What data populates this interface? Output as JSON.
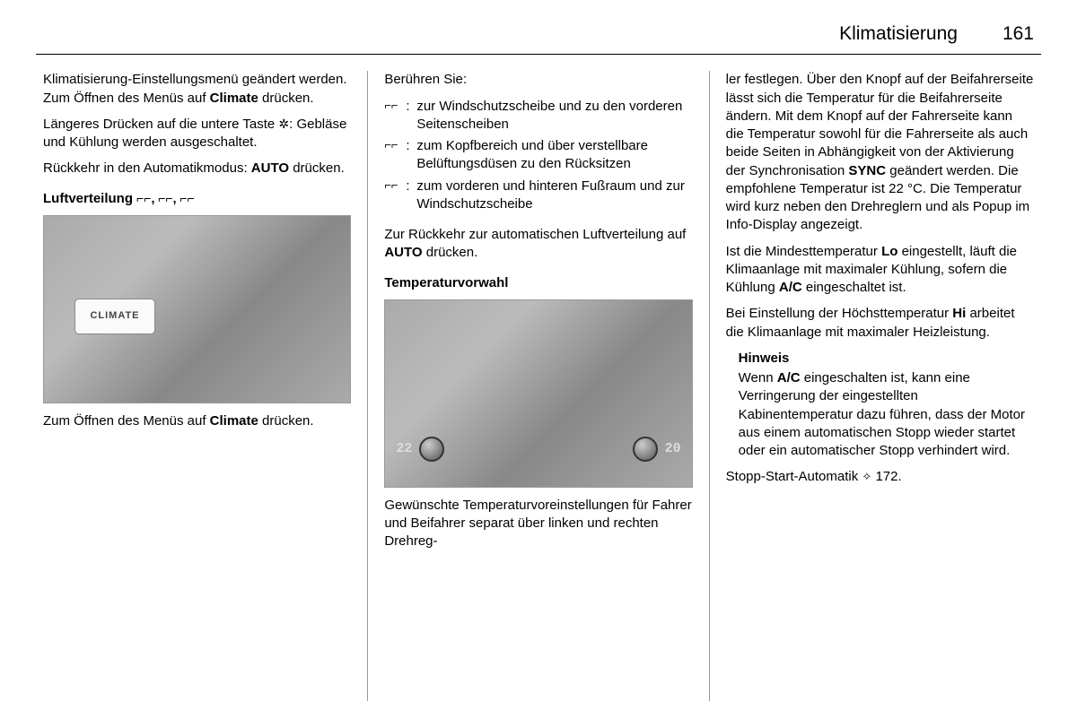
{
  "header": {
    "title": "Klimatisierung",
    "page": "161"
  },
  "col1": {
    "p1_a": "Klimatisierung-Einstellungsmenü geändert werden. Zum Öffnen des Menüs auf ",
    "p1_bold": "Climate",
    "p1_b": " drücken.",
    "p2_a": "Längeres Drücken auf die untere Taste ",
    "p2_icon": "✲",
    "p2_b": ": Gebläse und Kühlung werden ausgeschaltet.",
    "p3_a": "Rückkehr in den Automatikmodus: ",
    "p3_bold": "AUTO",
    "p3_b": " drücken.",
    "subhead_a": "Luftverteilung ",
    "subhead_icons": "⌐⌐, ⌐⌐, ⌐⌐",
    "climate_label": "CLIMATE",
    "p4_a": "Zum Öffnen des Menüs auf ",
    "p4_bold": "Climate",
    "p4_b": " drücken."
  },
  "col2": {
    "p1": "Berühren Sie:",
    "items": [
      {
        "icon": "⌐⌐",
        "text": "zur Windschutzscheibe und zu den vorderen Seitenscheiben"
      },
      {
        "icon": "⌐⌐",
        "text": "zum Kopfbereich und über verstellbare Belüftungsdüsen zu den Rücksitzen"
      },
      {
        "icon": "⌐⌐",
        "text": "zum vorderen und hinteren Fußraum und zur Windschutz­scheibe"
      }
    ],
    "p2_a": "Zur Rückkehr zur automatischen Luft­verteilung auf ",
    "p2_bold": "AUTO",
    "p2_b": " drücken.",
    "subhead": "Temperaturvorwahl",
    "temp_left": "22",
    "temp_right": "20",
    "p3": "Gewünschte Temperaturvoreinstel­lungen für Fahrer und Beifahrer sepa­rat über linken und rechten Drehreg-"
  },
  "col3": {
    "p1_a": "ler festlegen. Über den Knopf auf der Beifahrerseite lässt sich die Tempe­ratur für die Beifahrerseite ändern. Mit dem Knopf auf der Fahrerseite kann die Temperatur sowohl für die Fahrerseite als auch beide Seiten in Abhängigkeit von der Aktivierung der Synchronisation ",
    "p1_bold": "SYNC",
    "p1_b": " geändert werden. Die empfohlene Temperatur ist 22 °C. Die Temperatur wird kurz neben den Drehreglern und als Popup im Info-Display angezeigt.",
    "p2_a": "Ist die Mindesttemperatur ",
    "p2_bold1": "Lo",
    "p2_b": " einge­stellt, läuft die Klimaanlage mit maxi­maler Kühlung, sofern die Kühlung ",
    "p2_bold2": "A/C",
    "p2_c": " eingeschaltet ist.",
    "p3_a": "Bei Einstellung der Höchsttemperatur ",
    "p3_bold": "Hi",
    "p3_b": " arbeitet die Klimaanlage mit maxi­maler Heizleistung.",
    "note_title": "Hinweis",
    "note_a": "Wenn ",
    "note_bold": "A/C",
    "note_b": " eingeschalten ist, kann eine Verringerung der eingestellten Kabinentemperatur dazu führen, dass der Motor aus einem automa­tischen Stopp wieder startet oder ein automatischer Stopp verhindert wird.",
    "p4_a": "Stopp-Start-Automatik ",
    "p4_icon": "✧",
    "p4_b": " 172."
  }
}
